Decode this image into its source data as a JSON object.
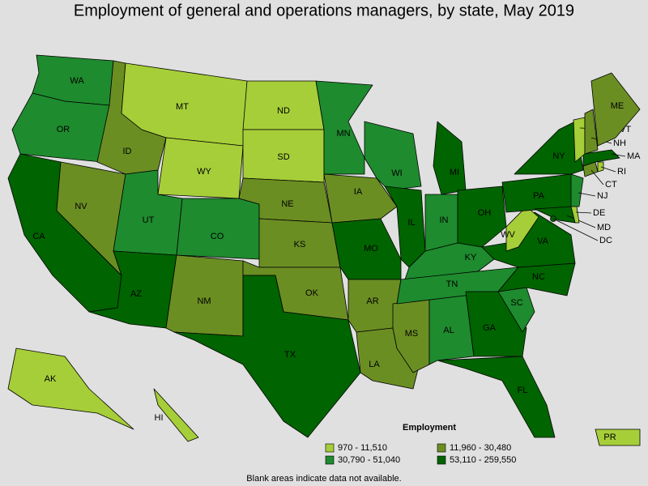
{
  "title": "Employment of general and operations managers, by state, May 2019",
  "legend": {
    "title": "Employment",
    "items": [
      {
        "label": "970 - 11,510",
        "color": "#a6ce39"
      },
      {
        "label": "11,960 - 30,480",
        "color": "#6b8e23"
      },
      {
        "label": "30,790 - 51,040",
        "color": "#1e8b2e"
      },
      {
        "label": "53,110 - 259,550",
        "color": "#006400"
      }
    ]
  },
  "note": "Blank areas indicate data not available.",
  "states": [
    {
      "label": "WA",
      "color": "#1e8b2e"
    },
    {
      "label": "OR",
      "color": "#1e8b2e"
    },
    {
      "label": "CA",
      "color": "#006400"
    },
    {
      "label": "NV",
      "color": "#6b8e23"
    },
    {
      "label": "ID",
      "color": "#6b8e23"
    },
    {
      "label": "MT",
      "color": "#a6ce39"
    },
    {
      "label": "WY",
      "color": "#a6ce39"
    },
    {
      "label": "UT",
      "color": "#1e8b2e"
    },
    {
      "label": "CO",
      "color": "#1e8b2e"
    },
    {
      "label": "AZ",
      "color": "#006400"
    },
    {
      "label": "NM",
      "color": "#6b8e23"
    },
    {
      "label": "ND",
      "color": "#a6ce39"
    },
    {
      "label": "SD",
      "color": "#a6ce39"
    },
    {
      "label": "NE",
      "color": "#6b8e23"
    },
    {
      "label": "KS",
      "color": "#6b8e23"
    },
    {
      "label": "OK",
      "color": "#6b8e23"
    },
    {
      "label": "TX",
      "color": "#006400"
    },
    {
      "label": "MN",
      "color": "#1e8b2e"
    },
    {
      "label": "IA",
      "color": "#6b8e23"
    },
    {
      "label": "MO",
      "color": "#006400"
    },
    {
      "label": "AR",
      "color": "#6b8e23"
    },
    {
      "label": "LA",
      "color": "#6b8e23"
    },
    {
      "label": "MS",
      "color": "#6b8e23"
    },
    {
      "label": "AL",
      "color": "#1e8b2e"
    },
    {
      "label": "WI",
      "color": "#1e8b2e"
    },
    {
      "label": "IL",
      "color": "#006400"
    },
    {
      "label": "MI",
      "color": "#006400"
    },
    {
      "label": "IN",
      "color": "#1e8b2e"
    },
    {
      "label": "OH",
      "color": "#006400"
    },
    {
      "label": "KY",
      "color": "#1e8b2e"
    },
    {
      "label": "TN",
      "color": "#1e8b2e"
    },
    {
      "label": "GA",
      "color": "#006400"
    },
    {
      "label": "FL",
      "color": "#006400"
    },
    {
      "label": "SC",
      "color": "#1e8b2e"
    },
    {
      "label": "NC",
      "color": "#006400"
    },
    {
      "label": "VA",
      "color": "#006400"
    },
    {
      "label": "WV",
      "color": "#a6ce39"
    },
    {
      "label": "PA",
      "color": "#006400"
    },
    {
      "label": "NY",
      "color": "#006400"
    },
    {
      "label": "NJ",
      "color": "#1e8b2e"
    },
    {
      "label": "MD",
      "color": "#006400"
    },
    {
      "label": "DE",
      "color": "#a6ce39"
    },
    {
      "label": "CT",
      "color": "#6b8e23"
    },
    {
      "label": "RI",
      "color": "#a6ce39"
    },
    {
      "label": "MA",
      "color": "#006400"
    },
    {
      "label": "VT",
      "color": "#a6ce39"
    },
    {
      "label": "NH",
      "color": "#6b8e23"
    },
    {
      "label": "ME",
      "color": "#6b8e23"
    },
    {
      "label": "AK",
      "color": "#a6ce39"
    },
    {
      "label": "HI",
      "color": "#a6ce39"
    },
    {
      "label": "PR",
      "color": "#a6ce39"
    },
    {
      "label": "DC",
      "color": "#006400"
    }
  ]
}
